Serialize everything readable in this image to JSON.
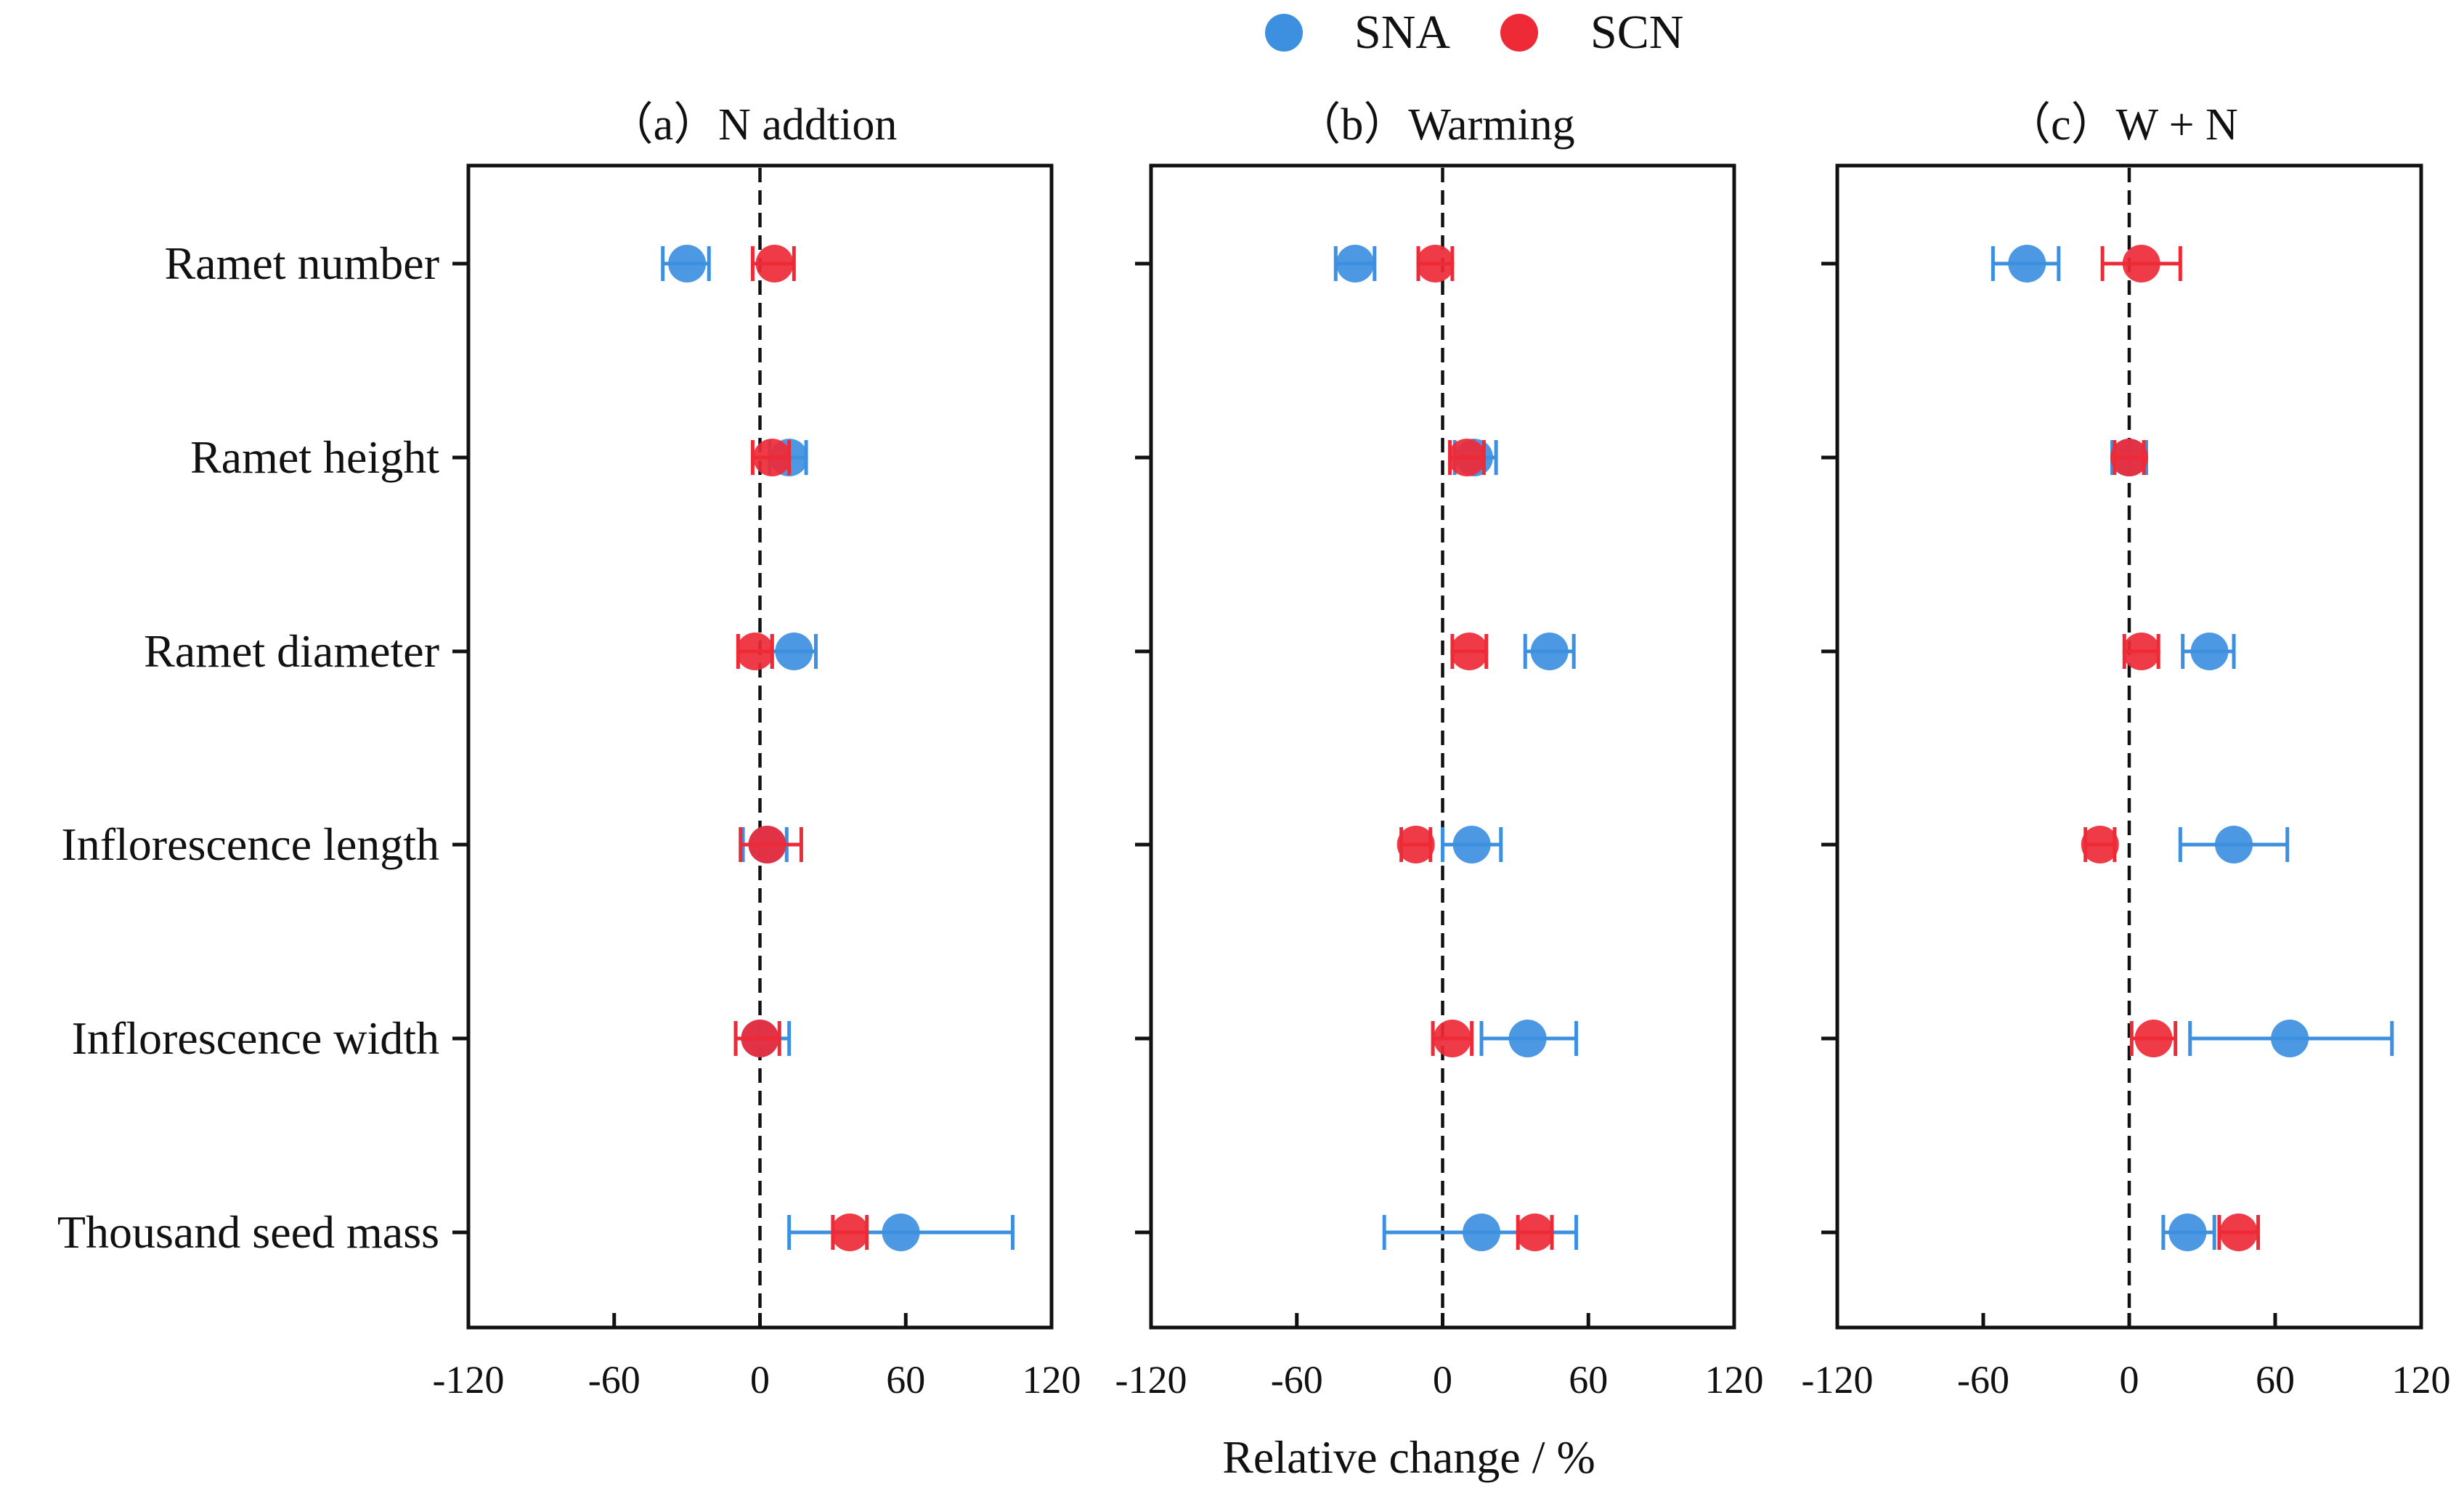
{
  "chart_data": {
    "type": "scatter",
    "legend": {
      "placement": "top-center",
      "items": [
        {
          "label": "SNA",
          "color": "#3d8fdf"
        },
        {
          "label": "SCN",
          "color": "#ee2a37"
        }
      ]
    },
    "categories": [
      "Ramet number",
      "Ramet height",
      "Ramet diameter",
      "Inflorescence length",
      "Inflorescence width",
      "Thousand seed mass"
    ],
    "xlabel": "Relative change / %",
    "xlim": [
      -120,
      120
    ],
    "xticks": [
      "-120",
      "-60",
      "0",
      "60",
      "120"
    ],
    "reference_line": 0,
    "panels": [
      {
        "title": "（a）N addtion",
        "series": [
          {
            "name": "SNA",
            "values": [
              -30,
              12,
              14,
              3,
              0,
              58
            ],
            "err_low": [
              -40,
              4,
              5,
              -7,
              -10,
              12
            ],
            "err_high": [
              -21,
              19,
              23,
              11,
              12,
              104
            ]
          },
          {
            "name": "SCN",
            "values": [
              6,
              5,
              -2,
              3,
              0,
              37
            ],
            "err_low": [
              -3,
              -3,
              -9,
              -8,
              -10,
              30
            ],
            "err_high": [
              14,
              12,
              5,
              17,
              8,
              44
            ]
          }
        ]
      },
      {
        "title": "（b）Warming",
        "series": [
          {
            "name": "SNA",
            "values": [
              -36,
              13,
              44,
              12,
              35,
              16
            ],
            "err_low": [
              -44,
              5,
              34,
              0,
              16,
              -24
            ],
            "err_high": [
              -28,
              22,
              54,
              24,
              55,
              55
            ]
          },
          {
            "name": "SCN",
            "values": [
              -3,
              10,
              11,
              -11,
              4,
              38
            ],
            "err_low": [
              -10,
              3,
              4,
              -17,
              -4,
              31
            ],
            "err_high": [
              4,
              17,
              18,
              -5,
              12,
              45
            ]
          }
        ]
      },
      {
        "title": "（c）W + N",
        "series": [
          {
            "name": "SNA",
            "values": [
              -42,
              0,
              33,
              43,
              66,
              24
            ],
            "err_low": [
              -56,
              -7,
              22,
              21,
              25,
              14
            ],
            "err_high": [
              -29,
              7,
              43,
              65,
              108,
              35
            ]
          },
          {
            "name": "SCN",
            "values": [
              5,
              0,
              5,
              -12,
              10,
              45
            ],
            "err_low": [
              -11,
              -6,
              -2,
              -18,
              1,
              37
            ],
            "err_high": [
              21,
              6,
              12,
              -6,
              19,
              53
            ]
          }
        ]
      }
    ]
  }
}
